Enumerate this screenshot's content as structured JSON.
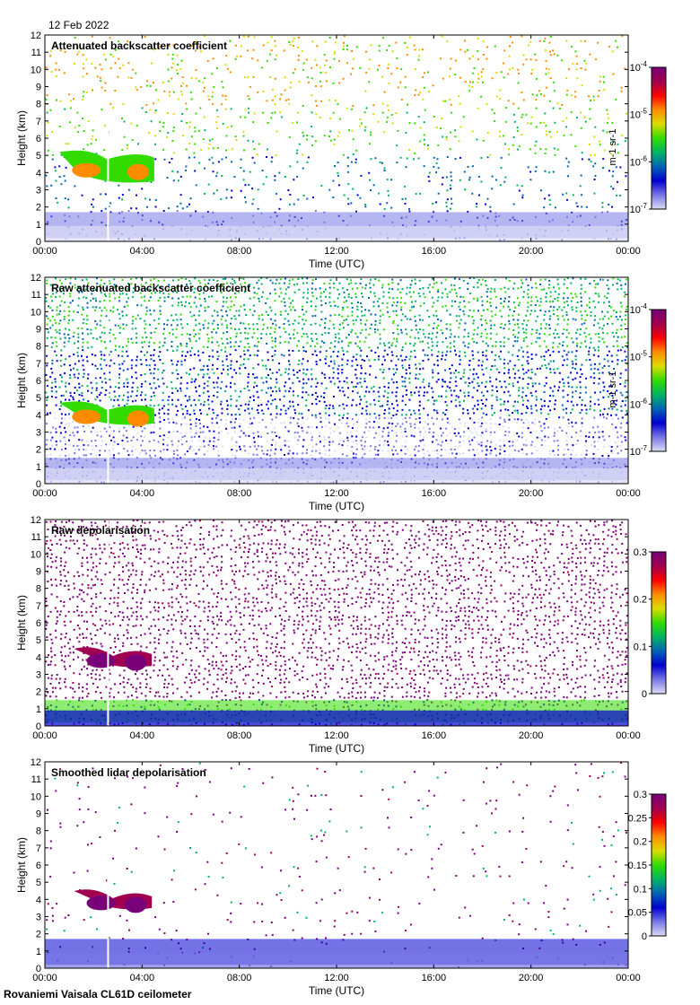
{
  "date": "12 Feb 2022",
  "footer": "Rovaniemi Vaisala CL61D ceilometer",
  "colors": {
    "cmap": [
      "#ffffff",
      "#dcdcf5",
      "#7878e6",
      "#0000d2",
      "#0064b4",
      "#00b464",
      "#32dc00",
      "#dcdc00",
      "#ff8c00",
      "#ff0000",
      "#a00050",
      "#780078"
    ]
  },
  "chart_data": [
    {
      "type": "heatmap",
      "title": "Attenuated backscatter coefficient",
      "xlabel": "Time (UTC)",
      "ylabel": "Height (km)",
      "xlim": [
        0,
        24
      ],
      "ylim": [
        0,
        12
      ],
      "xticks": [
        0,
        4,
        8,
        12,
        16,
        20,
        24
      ],
      "xtick_labels": [
        "00:00",
        "04:00",
        "08:00",
        "12:00",
        "16:00",
        "20:00",
        "00:00"
      ],
      "yticks": [
        0,
        1,
        2,
        3,
        4,
        5,
        6,
        7,
        8,
        9,
        10,
        11,
        12
      ],
      "ytick_labels": [
        "0",
        "1",
        "2",
        "3",
        "4",
        "5",
        "6",
        "7",
        "8",
        "9",
        "10",
        "11",
        "12"
      ],
      "colorbar": {
        "label": "m-1 sr-1",
        "scale": "log",
        "range": [
          1e-07,
          0.0001
        ],
        "ticks": [
          {
            "value": 1e-07,
            "base": "10",
            "exp": "-7"
          },
          {
            "value": 1e-06,
            "base": "10",
            "exp": "-6"
          },
          {
            "value": 1e-05,
            "base": "10",
            "exp": "-5"
          },
          {
            "value": 0.0001,
            "base": "10",
            "exp": "-4"
          }
        ]
      },
      "features": {
        "boundary_layer_top_km": 1.7,
        "cloud": {
          "x_start_h": 0.6,
          "x_end_h": 4.5,
          "y_bottom_km": 3.4,
          "y_top_km": 5.5
        },
        "data_gap_h": 2.6
      }
    },
    {
      "type": "heatmap",
      "title": "Raw attenuated backscatter coefficient",
      "xlabel": "Time (UTC)",
      "ylabel": "Height (km)",
      "xlim": [
        0,
        24
      ],
      "ylim": [
        0,
        12
      ],
      "xticks": [
        0,
        4,
        8,
        12,
        16,
        20,
        24
      ],
      "xtick_labels": [
        "00:00",
        "04:00",
        "08:00",
        "12:00",
        "16:00",
        "20:00",
        "00:00"
      ],
      "yticks": [
        0,
        1,
        2,
        3,
        4,
        5,
        6,
        7,
        8,
        9,
        10,
        11,
        12
      ],
      "ytick_labels": [
        "0",
        "1",
        "2",
        "3",
        "4",
        "5",
        "6",
        "7",
        "8",
        "9",
        "10",
        "11",
        "12"
      ],
      "colorbar": {
        "label": "m-1 sr-1",
        "scale": "log",
        "range": [
          1e-07,
          0.0001
        ],
        "ticks": [
          {
            "value": 1e-07,
            "base": "10",
            "exp": "-7"
          },
          {
            "value": 1e-06,
            "base": "10",
            "exp": "-6"
          },
          {
            "value": 1e-05,
            "base": "10",
            "exp": "-5"
          },
          {
            "value": 0.0001,
            "base": "10",
            "exp": "-4"
          }
        ]
      },
      "features": {
        "boundary_layer_top_km": 1.5,
        "cloud": {
          "x_start_h": 0.6,
          "x_end_h": 4.5,
          "y_bottom_km": 3.4,
          "y_top_km": 5.0
        },
        "data_gap_h": 2.6
      }
    },
    {
      "type": "heatmap",
      "title": "Raw depolarisation",
      "xlabel": "Time (UTC)",
      "ylabel": "Height (km)",
      "xlim": [
        0,
        24
      ],
      "ylim": [
        0,
        12
      ],
      "xticks": [
        0,
        4,
        8,
        12,
        16,
        20,
        24
      ],
      "xtick_labels": [
        "00:00",
        "04:00",
        "08:00",
        "12:00",
        "16:00",
        "20:00",
        "00:00"
      ],
      "yticks": [
        0,
        1,
        2,
        3,
        4,
        5,
        6,
        7,
        8,
        9,
        10,
        11,
        12
      ],
      "ytick_labels": [
        "0",
        "1",
        "2",
        "3",
        "4",
        "5",
        "6",
        "7",
        "8",
        "9",
        "10",
        "11",
        "12"
      ],
      "colorbar": {
        "label": "",
        "scale": "linear",
        "range": [
          0,
          0.3
        ],
        "ticks": [
          {
            "value": 0,
            "text": "0"
          },
          {
            "value": 0.1,
            "text": "0.1"
          },
          {
            "value": 0.2,
            "text": "0.2"
          },
          {
            "value": 0.3,
            "text": "0.3"
          }
        ]
      },
      "features": {
        "boundary_layer_top_km": 1.5,
        "cloud": {
          "x_start_h": 1.2,
          "x_end_h": 4.4,
          "y_bottom_km": 3.4,
          "y_top_km": 4.8
        },
        "data_gap_h": 2.6
      }
    },
    {
      "type": "heatmap",
      "title": "Smoothed lidar depolarisation",
      "xlabel": "Time (UTC)",
      "ylabel": "Height (km)",
      "xlim": [
        0,
        24
      ],
      "ylim": [
        0,
        12
      ],
      "xticks": [
        0,
        4,
        8,
        12,
        16,
        20,
        24
      ],
      "xtick_labels": [
        "00:00",
        "04:00",
        "08:00",
        "12:00",
        "16:00",
        "20:00",
        "00:00"
      ],
      "yticks": [
        0,
        1,
        2,
        3,
        4,
        5,
        6,
        7,
        8,
        9,
        10,
        11,
        12
      ],
      "ytick_labels": [
        "0",
        "1",
        "2",
        "3",
        "4",
        "5",
        "6",
        "7",
        "8",
        "9",
        "10",
        "11",
        "12"
      ],
      "colorbar": {
        "label": "",
        "scale": "linear",
        "range": [
          0,
          0.3
        ],
        "ticks": [
          {
            "value": 0,
            "text": "0"
          },
          {
            "value": 0.05,
            "text": "0.05"
          },
          {
            "value": 0.1,
            "text": "0.1"
          },
          {
            "value": 0.15,
            "text": "0.15"
          },
          {
            "value": 0.2,
            "text": "0.2"
          },
          {
            "value": 0.25,
            "text": "0.25"
          },
          {
            "value": 0.3,
            "text": "0.3"
          }
        ]
      },
      "features": {
        "boundary_layer_top_km": 1.7,
        "cloud": {
          "x_start_h": 1.2,
          "x_end_h": 4.4,
          "y_bottom_km": 3.4,
          "y_top_km": 4.8
        },
        "data_gap_h": 2.6
      }
    }
  ]
}
